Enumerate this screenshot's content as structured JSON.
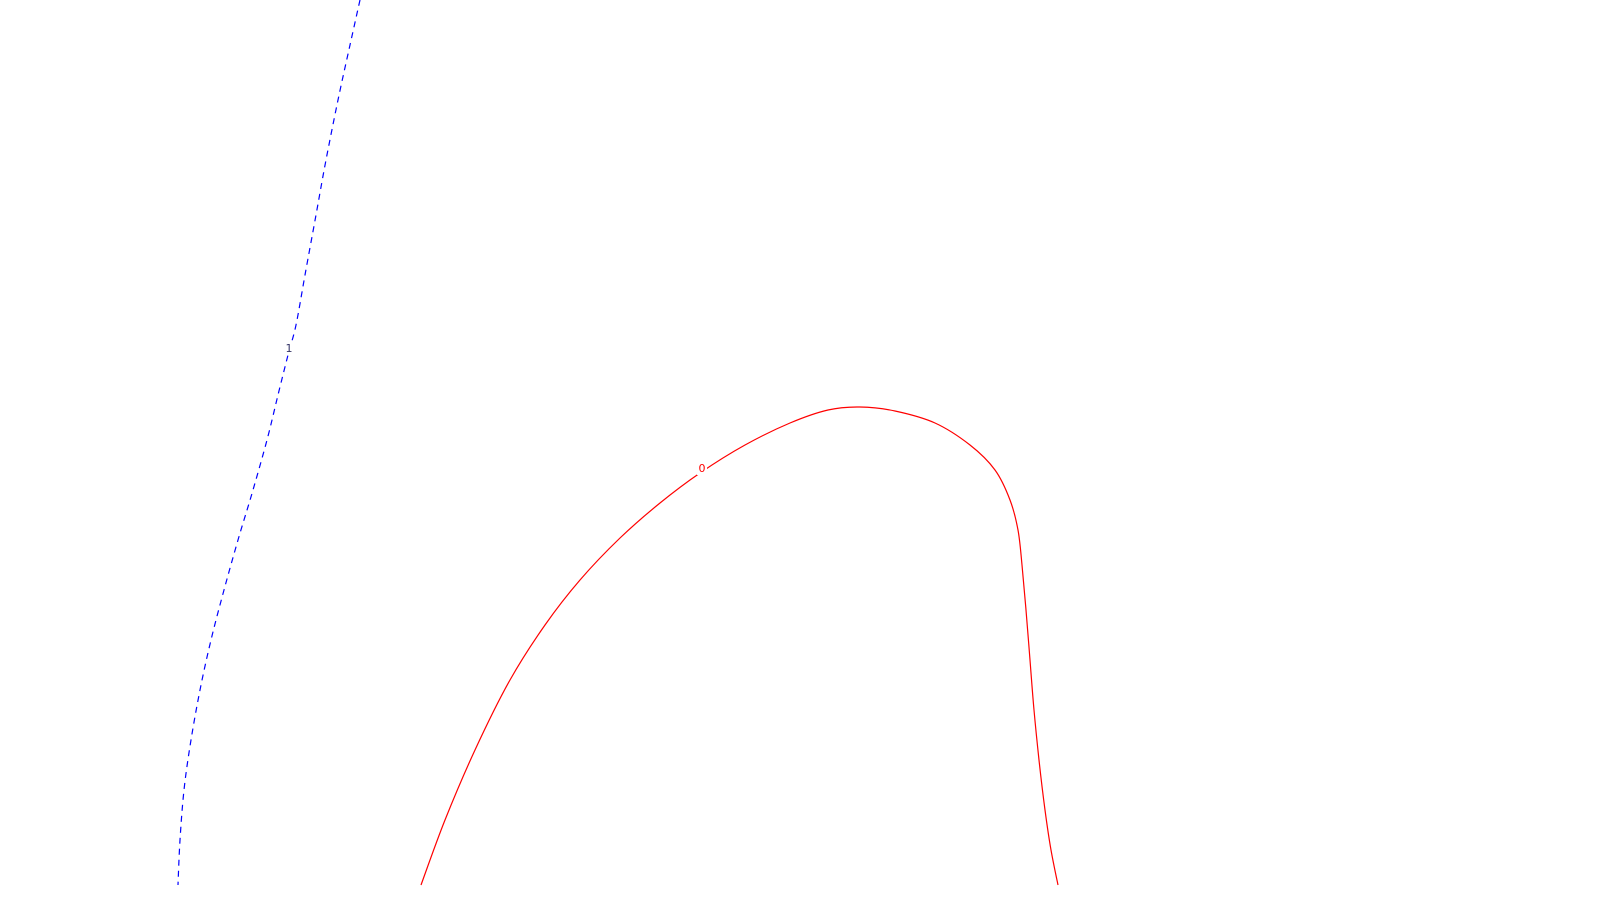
{
  "chart_data": {
    "type": "contour",
    "grid": false,
    "legend": "none",
    "series": [
      {
        "level_label": "1",
        "color": "#0000ff",
        "line_style": "dashed",
        "points": [
          [
            360,
            0
          ],
          [
            350,
            45
          ],
          [
            338,
            100
          ],
          [
            326,
            160
          ],
          [
            316,
            215
          ],
          [
            305,
            275
          ],
          [
            296,
            325
          ],
          [
            288,
            355
          ],
          [
            278,
            395
          ],
          [
            267,
            440
          ],
          [
            253,
            490
          ],
          [
            238,
            540
          ],
          [
            224,
            590
          ],
          [
            211,
            640
          ],
          [
            200,
            690
          ],
          [
            191,
            740
          ],
          [
            184,
            790
          ],
          [
            180,
            840
          ],
          [
            178,
            885
          ]
        ],
        "label_at": [
          289,
          352
        ]
      },
      {
        "level_label": "0",
        "color": "#ff0000",
        "line_style": "solid",
        "points": [
          [
            421,
            885
          ],
          [
            445,
            820
          ],
          [
            475,
            750
          ],
          [
            510,
            680
          ],
          [
            545,
            625
          ],
          [
            580,
            580
          ],
          [
            620,
            538
          ],
          [
            660,
            503
          ],
          [
            700,
            473
          ],
          [
            745,
            445
          ],
          [
            790,
            423
          ],
          [
            828,
            410
          ],
          [
            860,
            407
          ],
          [
            895,
            411
          ],
          [
            935,
            423
          ],
          [
            970,
            445
          ],
          [
            995,
            470
          ],
          [
            1010,
            500
          ],
          [
            1018,
            530
          ],
          [
            1022,
            565
          ],
          [
            1026,
            610
          ],
          [
            1030,
            660
          ],
          [
            1034,
            710
          ],
          [
            1039,
            760
          ],
          [
            1045,
            810
          ],
          [
            1051,
            850
          ],
          [
            1058,
            885
          ]
        ],
        "label_at": [
          702,
          472
        ]
      }
    ]
  }
}
